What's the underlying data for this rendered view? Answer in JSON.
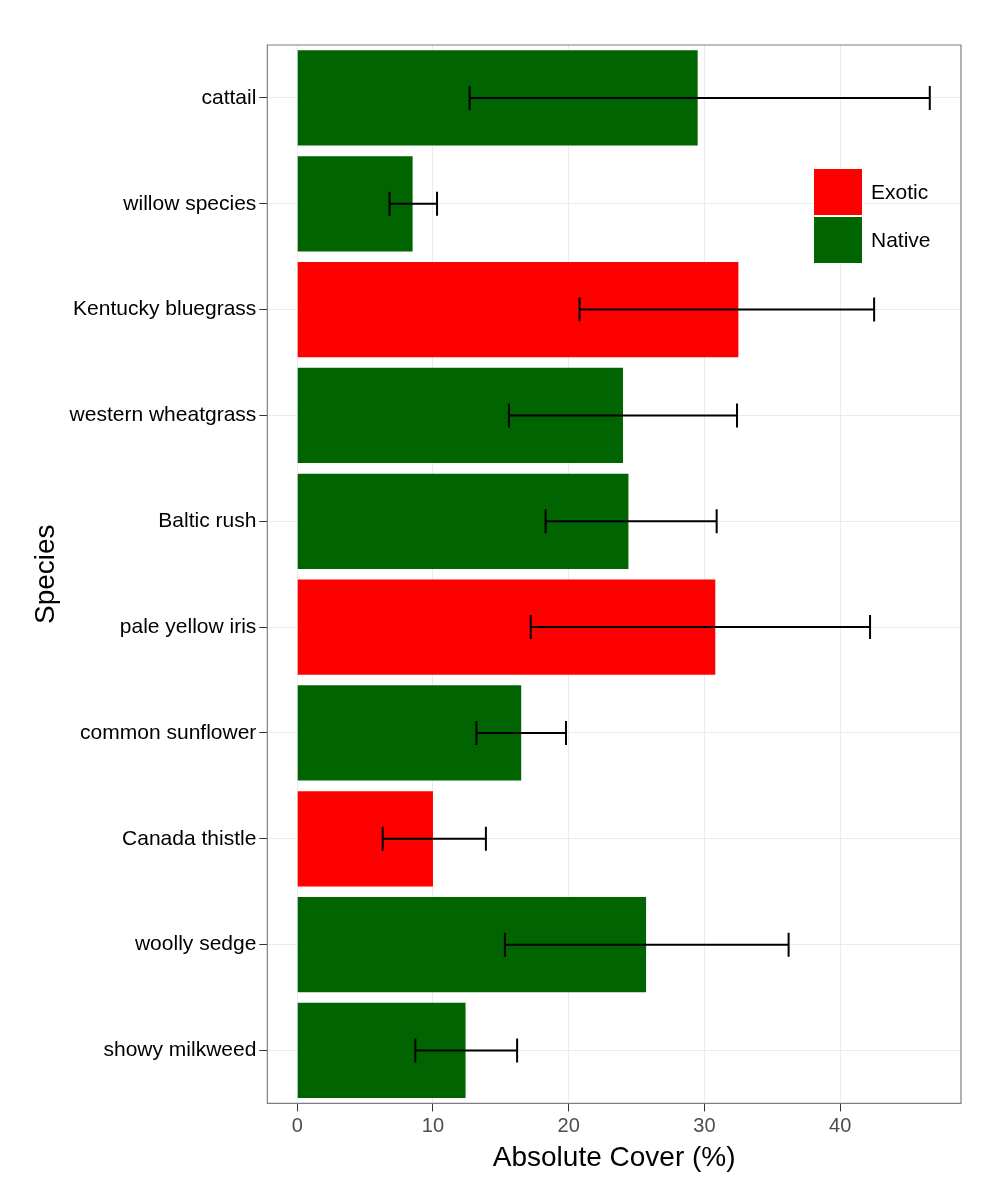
{
  "chart_data": {
    "type": "bar",
    "orientation": "horizontal",
    "xlabel": "Absolute Cover (%)",
    "ylabel": "Species",
    "categories": [
      "cattail",
      "willow species",
      "Kentucky bluegrass",
      "western wheatgrass",
      "Baltic rush",
      "pale yellow iris",
      "common sunflower",
      "Canada thistle",
      "woolly sedge",
      "showy milkweed"
    ],
    "series": [
      {
        "name": "Exotic",
        "color": "#ff0000",
        "values": [
          null,
          null,
          32.5,
          null,
          null,
          30.8,
          null,
          10.0,
          null,
          null
        ],
        "errors": [
          null,
          null,
          [
            20.8,
            42.5
          ],
          null,
          null,
          [
            17.2,
            42.2
          ],
          null,
          [
            6.3,
            13.9
          ],
          null,
          null
        ]
      },
      {
        "name": "Native",
        "color": "#006400",
        "values": [
          29.5,
          8.5,
          null,
          24.0,
          24.4,
          null,
          16.5,
          null,
          25.7,
          12.4
        ],
        "errors": [
          [
            12.7,
            46.6
          ],
          [
            6.8,
            10.3
          ],
          null,
          [
            15.6,
            32.4
          ],
          [
            18.3,
            30.9
          ],
          null,
          [
            13.2,
            19.8
          ],
          null,
          [
            15.3,
            36.2
          ],
          [
            8.7,
            16.2
          ]
        ]
      }
    ],
    "xlim": [
      -2.2,
      48.9
    ],
    "xticks": [
      0,
      10,
      20,
      30,
      40
    ],
    "grid": true,
    "legend": "top right"
  }
}
